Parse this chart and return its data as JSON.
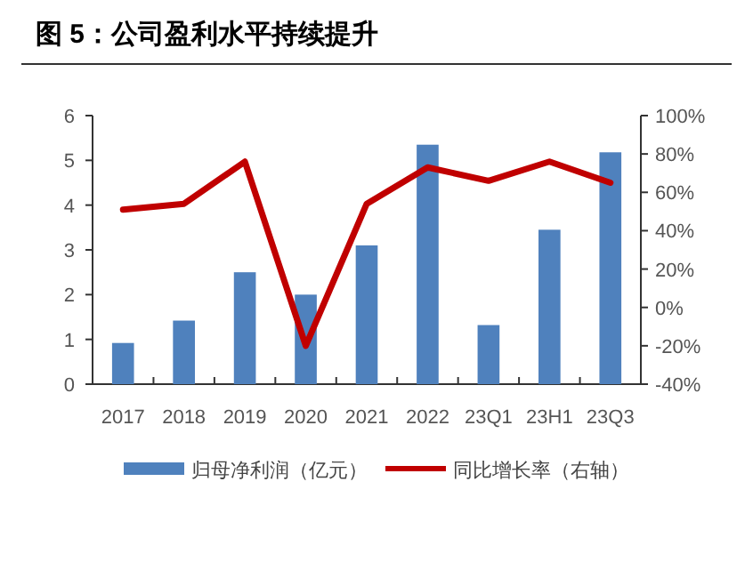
{
  "chart_data": {
    "type": "bar",
    "title": "图 5：公司盈利水平持续提升",
    "categories": [
      "2017",
      "2018",
      "2019",
      "2020",
      "2021",
      "2022",
      "23Q1",
      "23H1",
      "23Q3"
    ],
    "series": [
      {
        "name": "归母净利润（亿元）",
        "color": "#4f81bd",
        "values": [
          0.92,
          1.42,
          2.5,
          2.0,
          3.1,
          5.35,
          1.32,
          3.45,
          5.18
        ]
      },
      {
        "name": "同比增长率（右轴）",
        "type": "line",
        "axis": "y2",
        "color": "#c00000",
        "values": [
          51,
          54,
          76,
          -20,
          54,
          73,
          66,
          76,
          65
        ]
      }
    ],
    "ylim": [
      0,
      6
    ],
    "yticks": [
      0,
      1,
      2,
      3,
      4,
      5,
      6
    ],
    "y2lim": [
      -40,
      100
    ],
    "y2ticks": [
      {
        "value": -40,
        "label": "-40%"
      },
      {
        "value": -20,
        "label": "-20%"
      },
      {
        "value": 0,
        "label": "0%"
      },
      {
        "value": 20,
        "label": "20%"
      },
      {
        "value": 40,
        "label": "40%"
      },
      {
        "value": 60,
        "label": "60%"
      },
      {
        "value": 80,
        "label": "80%"
      },
      {
        "value": 100,
        "label": "100%"
      }
    ],
    "legend": "bottom",
    "grid": false
  }
}
